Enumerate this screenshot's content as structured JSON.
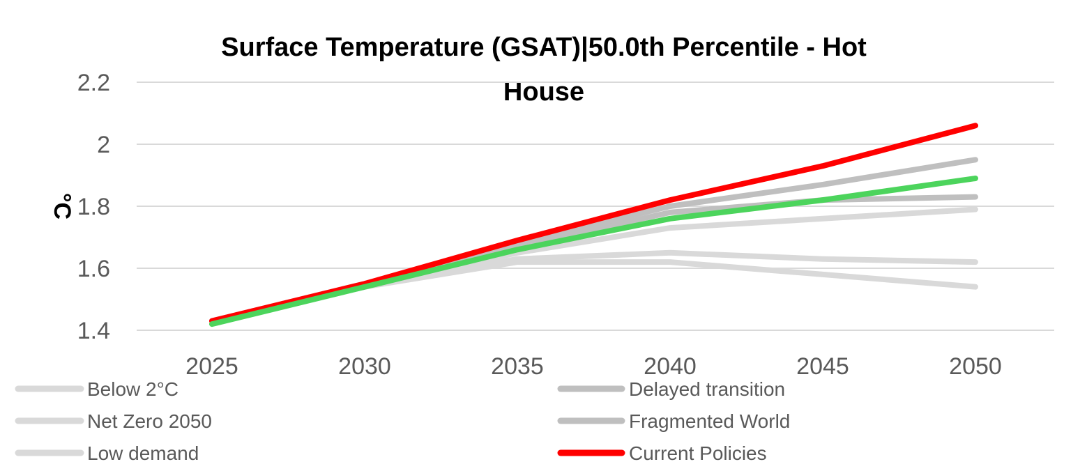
{
  "chart_data": {
    "type": "line",
    "title_line1": "Surface Temperature (GSAT)|50.0th Percentile - Hot",
    "title_line2": "House",
    "ylabel": "°C",
    "xlabel": "",
    "x": [
      2025,
      2030,
      2035,
      2040,
      2045,
      2050
    ],
    "xtick_labels": [
      "2025",
      "2030",
      "2035",
      "2040",
      "2045",
      "2050"
    ],
    "ylim": [
      1.4,
      2.2
    ],
    "ytick_values": [
      1.4,
      1.6,
      1.8,
      2.0,
      2.2
    ],
    "ytick_labels": [
      "1.4",
      "1.6",
      "1.8",
      "2",
      "2.2"
    ],
    "grid": true,
    "legend_position": "bottom",
    "series": [
      {
        "name": "Below 2°C",
        "color": "#d9d9d9",
        "values": [
          1.43,
          1.54,
          1.63,
          1.65,
          1.63,
          1.62
        ]
      },
      {
        "name": "Net Zero 2050",
        "color": "#d9d9d9",
        "values": [
          1.43,
          1.54,
          1.62,
          1.62,
          1.58,
          1.54
        ]
      },
      {
        "name": "Low demand",
        "color": "#d9d9d9",
        "values": [
          1.43,
          1.54,
          1.65,
          1.73,
          1.76,
          1.79
        ]
      },
      {
        "name": "Delayed transition",
        "color": "#bfbfbf",
        "values": [
          1.43,
          1.55,
          1.67,
          1.78,
          1.82,
          1.83
        ]
      },
      {
        "name": "Fragmented World",
        "color": "#bfbfbf",
        "values": [
          1.43,
          1.55,
          1.68,
          1.8,
          1.87,
          1.95
        ]
      },
      {
        "name": "Current Policies",
        "color": "#ff0000",
        "values": [
          1.43,
          1.55,
          1.69,
          1.82,
          1.93,
          2.06
        ]
      },
      {
        "name": "",
        "color": "#4cd45c",
        "values": [
          1.42,
          1.54,
          1.66,
          1.76,
          1.82,
          1.89
        ]
      }
    ]
  }
}
